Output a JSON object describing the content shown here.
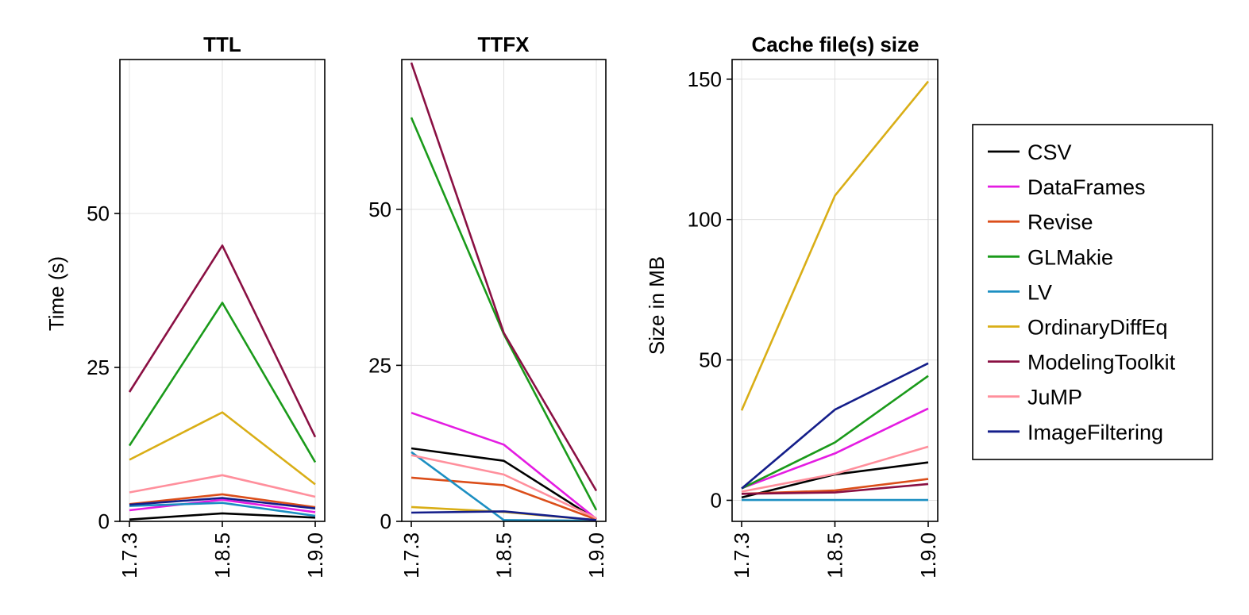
{
  "chart_data": [
    {
      "type": "line",
      "title": "TTL",
      "xlabel": "",
      "ylabel": "Time (s)",
      "categories": [
        "1.7.3",
        "1.8.5",
        "1.9.0"
      ],
      "ylim": [
        0,
        75
      ],
      "yticks": [
        0,
        25,
        50
      ],
      "ytick_labels": [
        "0",
        "25",
        "50"
      ],
      "grid": true,
      "series": [
        {
          "name": "CSV",
          "values": [
            0.3,
            1.3,
            0.6
          ]
        },
        {
          "name": "DataFrames",
          "values": [
            1.8,
            3.5,
            1.5
          ]
        },
        {
          "name": "Revise",
          "values": [
            2.8,
            4.4,
            2.3
          ]
        },
        {
          "name": "GLMakie",
          "values": [
            12.3,
            35.5,
            9.6
          ]
        },
        {
          "name": "LV",
          "values": [
            2.5,
            3.0,
            0.9
          ]
        },
        {
          "name": "OrdinaryDiffEq",
          "values": [
            10.0,
            17.7,
            6.0
          ]
        },
        {
          "name": "ModelingToolkit",
          "values": [
            21.0,
            44.8,
            13.7
          ]
        },
        {
          "name": "JuMP",
          "values": [
            4.7,
            7.5,
            4.0
          ]
        },
        {
          "name": "ImageFiltering",
          "values": [
            2.7,
            3.8,
            2.1
          ]
        }
      ]
    },
    {
      "type": "line",
      "title": "TTFX",
      "xlabel": "",
      "ylabel": "",
      "categories": [
        "1.7.3",
        "1.8.5",
        "1.9.0"
      ],
      "ylim": [
        0,
        74
      ],
      "yticks": [
        0,
        25,
        50
      ],
      "ytick_labels": [
        "0",
        "25",
        "50"
      ],
      "grid": true,
      "series": [
        {
          "name": "CSV",
          "values": [
            11.7,
            9.7,
            0.3
          ]
        },
        {
          "name": "DataFrames",
          "values": [
            17.4,
            12.3,
            0.4
          ]
        },
        {
          "name": "Revise",
          "values": [
            7.0,
            5.8,
            0.3
          ]
        },
        {
          "name": "GLMakie",
          "values": [
            64.7,
            30.0,
            1.8
          ]
        },
        {
          "name": "LV",
          "values": [
            11.1,
            0.2,
            0.1
          ]
        },
        {
          "name": "OrdinaryDiffEq",
          "values": [
            2.3,
            1.5,
            0.2
          ]
        },
        {
          "name": "ModelingToolkit",
          "values": [
            73.5,
            30.2,
            4.9
          ]
        },
        {
          "name": "JuMP",
          "values": [
            10.6,
            7.5,
            0.5
          ]
        },
        {
          "name": "ImageFiltering",
          "values": [
            1.4,
            1.6,
            0.2
          ]
        }
      ]
    },
    {
      "type": "line",
      "title": "Cache file(s) size",
      "xlabel": "",
      "ylabel": "Size in MB",
      "categories": [
        "1.7.3",
        "1.8.5",
        "1.9.0"
      ],
      "ylim": [
        -7.5,
        157
      ],
      "yticks": [
        0,
        50,
        100,
        150
      ],
      "ytick_labels": [
        "0",
        "50",
        "100",
        "150"
      ],
      "grid": true,
      "series": [
        {
          "name": "CSV",
          "values": [
            1.0,
            9.2,
            13.5
          ]
        },
        {
          "name": "DataFrames",
          "values": [
            4.3,
            16.7,
            32.7
          ]
        },
        {
          "name": "Revise",
          "values": [
            2.3,
            3.5,
            7.6
          ]
        },
        {
          "name": "GLMakie",
          "values": [
            4.2,
            20.6,
            44.3
          ]
        },
        {
          "name": "LV",
          "values": [
            0.1,
            0.1,
            0.1
          ]
        },
        {
          "name": "OrdinaryDiffEq",
          "values": [
            32.0,
            108.5,
            149.2
          ]
        },
        {
          "name": "ModelingToolkit",
          "values": [
            2.3,
            2.8,
            5.8
          ]
        },
        {
          "name": "JuMP",
          "values": [
            3.1,
            9.4,
            19.1
          ]
        },
        {
          "name": "ImageFiltering",
          "values": [
            4.2,
            32.3,
            48.8
          ]
        }
      ]
    }
  ],
  "legend": {
    "placement": "right",
    "entries": [
      {
        "name": "CSV",
        "color": "#000000"
      },
      {
        "name": "DataFrames",
        "color": "#e41ce2"
      },
      {
        "name": "Revise",
        "color": "#db4e1a"
      },
      {
        "name": "GLMakie",
        "color": "#1a9a1a"
      },
      {
        "name": "LV",
        "color": "#1c8fc2"
      },
      {
        "name": "OrdinaryDiffEq",
        "color": "#d9ae16"
      },
      {
        "name": "ModelingToolkit",
        "color": "#8a1043"
      },
      {
        "name": "JuMP",
        "color": "#ff8f9c"
      },
      {
        "name": "ImageFiltering",
        "color": "#141e8a"
      }
    ]
  }
}
